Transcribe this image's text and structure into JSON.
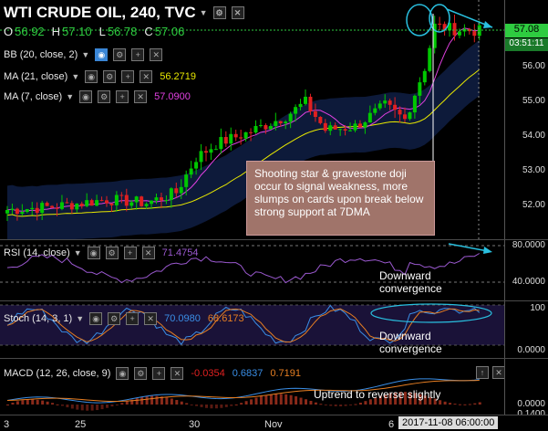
{
  "header": {
    "symbol": "WTI CRUDE OIL, 240, TVC",
    "open_label": "O",
    "open": "56.92",
    "high_label": "H",
    "high": "57.10",
    "low_label": "L",
    "low": "56.78",
    "close_label": "C",
    "close": "57.06"
  },
  "indicators": {
    "bb": {
      "label": "BB (20, close, 2)"
    },
    "ma21": {
      "label": "MA (21, close)",
      "value": "56.2719"
    },
    "ma7": {
      "label": "MA (7, close)",
      "value": "57.0900"
    }
  },
  "price_axis": {
    "ticks": [
      "56.00",
      "55.00",
      "54.00",
      "53.00",
      "52.00"
    ],
    "last_price": "57.08",
    "countdown": "03:51:11"
  },
  "annotation_main": "Shooting star & gravestone doji occur to signal weakness, more slumps on cards upon break below strong support at 7DMA",
  "rsi": {
    "label": "RSI (14, close)",
    "value": "71.4754",
    "ticks": [
      "80.0000",
      "40.0000"
    ],
    "annotation": "Downward convergence"
  },
  "stoch": {
    "label": "Stoch (14, 3, 1)",
    "k": "70.0980",
    "d": "68.6173",
    "ticks": [
      "100",
      "0.0000"
    ],
    "annotation": "Downward convergence"
  },
  "macd": {
    "label": "MACD (12, 26, close, 9)",
    "hist": "-0.0354",
    "macd": "0.6837",
    "signal": "0.7191",
    "ticks": [
      "0.0000",
      "0.1400"
    ],
    "annotation": "Uptrend to reverse slightly"
  },
  "time_axis": {
    "labels": [
      "3",
      "25",
      "30",
      "Nov",
      "6"
    ],
    "cursor_time": "2017-11-08 06:00:00"
  },
  "colors": {
    "up": "#00c800",
    "down": "#e02020",
    "ma21": "#e8e800",
    "ma7": "#e040e0",
    "rsi": "#9b59d0",
    "stoch_k": "#3a8ee6",
    "stoch_d": "#e67e22",
    "macd": "#3a8ee6",
    "signal": "#e67e22",
    "annotation": "#29c0e0"
  }
}
